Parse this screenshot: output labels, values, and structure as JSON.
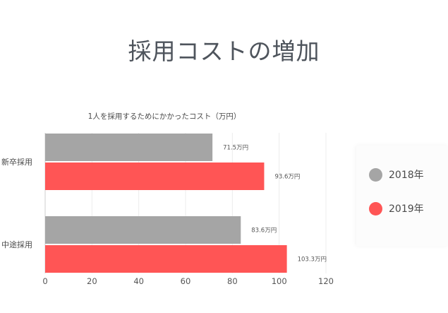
{
  "page": {
    "title": "採用コストの増加"
  },
  "chart_data": {
    "type": "bar",
    "orientation": "horizontal",
    "title": "1人を採用するためにかかったコスト（万円）",
    "categories": [
      "新卒採用",
      "中途採用"
    ],
    "series": [
      {
        "name": "2018年",
        "color": "#a5a5a5",
        "values": [
          71.5,
          83.6
        ],
        "labels": [
          "71.5万円",
          "83.6万円"
        ]
      },
      {
        "name": "2019年",
        "color": "#ff5555",
        "values": [
          93.6,
          103.3
        ],
        "labels": [
          "93.6万円",
          "103.3万円"
        ]
      }
    ],
    "xlim": [
      0,
      120
    ],
    "xticks": [
      0,
      20,
      40,
      60,
      80,
      100,
      120
    ],
    "grid": true,
    "legend_position": "right"
  }
}
